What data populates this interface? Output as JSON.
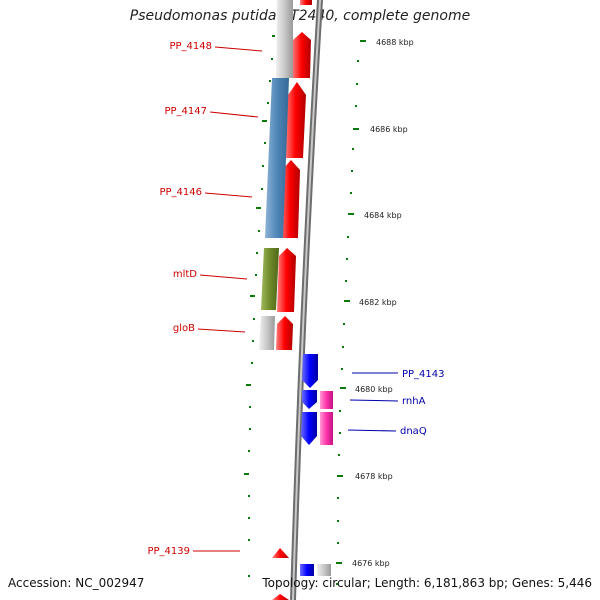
{
  "title": "Pseudomonas putida KT2440, complete genome",
  "footer": {
    "accession": "Accession: NC_002947",
    "summary": "Topology: circular; Length: 6,181,863 bp; Genes: 5,446"
  },
  "scale_labels": [
    "4688 kbp",
    "4686 kbp",
    "4684 kbp",
    "4682 kbp",
    "4680 kbp",
    "4678 kbp",
    "4676 kbp"
  ],
  "genes_left": [
    {
      "label": "PP_4148",
      "color": "#c8c8c8",
      "strand": "reverse_gray"
    },
    {
      "label": "PP_4147",
      "color": "#4f86b8"
    },
    {
      "label": "PP_4146",
      "color": "#4f86b8"
    },
    {
      "label": "mltD",
      "color": "#6e8a2a"
    },
    {
      "label": "gloB",
      "color": "#c8c8c8"
    },
    {
      "label": "PP_4139",
      "color": "#ff0000"
    }
  ],
  "genes_right": [
    {
      "label": "PP_4143",
      "color": "#0000ff"
    },
    {
      "label": "rnhA",
      "color": "#ff33aa"
    },
    {
      "label": "dnaQ",
      "color": "#ff33aa"
    }
  ],
  "colors": {
    "red": "#ff0000",
    "blue": "#0000ff",
    "pink": "#ff33aa",
    "gray": "#c8c8c8",
    "steel": "#4f86b8",
    "olive": "#6e8a2a",
    "green_ticks": "#0a7a0a",
    "backbone": "#8a8a8a"
  }
}
